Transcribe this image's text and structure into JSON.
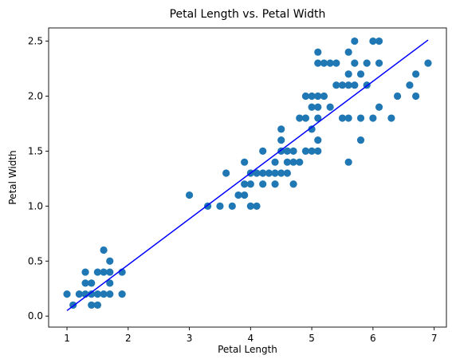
{
  "chart_data": {
    "type": "scatter",
    "title": "Petal Length vs. Petal Width",
    "xlabel": "Petal Length",
    "ylabel": "Petal Width",
    "xlim": [
      0.7,
      7.2
    ],
    "ylim": [
      -0.1,
      2.62
    ],
    "xticks": [
      1,
      2,
      3,
      4,
      5,
      6,
      7
    ],
    "yticks": [
      0.0,
      0.5,
      1.0,
      1.5,
      2.0,
      2.5
    ],
    "ytick_labels": [
      "0.0",
      "0.5",
      "1.0",
      "1.5",
      "2.0",
      "2.5"
    ],
    "grid": false,
    "legend": "none",
    "point_color": "#1f77b4",
    "line_color": "#0000ff",
    "points": [
      [
        1.0,
        0.2
      ],
      [
        1.1,
        0.1
      ],
      [
        1.2,
        0.2
      ],
      [
        1.3,
        0.2
      ],
      [
        1.3,
        0.3
      ],
      [
        1.3,
        0.4
      ],
      [
        1.4,
        0.1
      ],
      [
        1.4,
        0.2
      ],
      [
        1.4,
        0.3
      ],
      [
        1.5,
        0.1
      ],
      [
        1.5,
        0.2
      ],
      [
        1.5,
        0.4
      ],
      [
        1.6,
        0.2
      ],
      [
        1.6,
        0.4
      ],
      [
        1.6,
        0.6
      ],
      [
        1.7,
        0.2
      ],
      [
        1.7,
        0.3
      ],
      [
        1.7,
        0.4
      ],
      [
        1.7,
        0.5
      ],
      [
        1.9,
        0.2
      ],
      [
        1.9,
        0.4
      ],
      [
        3.0,
        1.1
      ],
      [
        3.3,
        1.0
      ],
      [
        3.5,
        1.0
      ],
      [
        3.6,
        1.3
      ],
      [
        3.7,
        1.0
      ],
      [
        3.8,
        1.1
      ],
      [
        3.9,
        1.1
      ],
      [
        3.9,
        1.2
      ],
      [
        3.9,
        1.4
      ],
      [
        4.0,
        1.0
      ],
      [
        4.0,
        1.2
      ],
      [
        4.0,
        1.3
      ],
      [
        4.1,
        1.0
      ],
      [
        4.1,
        1.3
      ],
      [
        4.2,
        1.2
      ],
      [
        4.2,
        1.3
      ],
      [
        4.2,
        1.5
      ],
      [
        4.3,
        1.3
      ],
      [
        4.4,
        1.2
      ],
      [
        4.4,
        1.3
      ],
      [
        4.4,
        1.4
      ],
      [
        4.5,
        1.3
      ],
      [
        4.5,
        1.5
      ],
      [
        4.5,
        1.6
      ],
      [
        4.5,
        1.7
      ],
      [
        4.6,
        1.3
      ],
      [
        4.6,
        1.4
      ],
      [
        4.6,
        1.5
      ],
      [
        4.7,
        1.2
      ],
      [
        4.7,
        1.4
      ],
      [
        4.7,
        1.5
      ],
      [
        4.8,
        1.4
      ],
      [
        4.8,
        1.8
      ],
      [
        4.9,
        1.5
      ],
      [
        4.9,
        1.8
      ],
      [
        4.9,
        2.0
      ],
      [
        5.0,
        1.5
      ],
      [
        5.0,
        1.7
      ],
      [
        5.0,
        1.9
      ],
      [
        5.0,
        2.0
      ],
      [
        5.1,
        1.5
      ],
      [
        5.1,
        1.6
      ],
      [
        5.1,
        1.8
      ],
      [
        5.1,
        1.9
      ],
      [
        5.1,
        2.0
      ],
      [
        5.1,
        2.3
      ],
      [
        5.1,
        2.4
      ],
      [
        5.2,
        2.0
      ],
      [
        5.2,
        2.3
      ],
      [
        5.3,
        1.9
      ],
      [
        5.3,
        2.3
      ],
      [
        5.4,
        2.1
      ],
      [
        5.4,
        2.3
      ],
      [
        5.5,
        1.8
      ],
      [
        5.5,
        2.1
      ],
      [
        5.6,
        1.4
      ],
      [
        5.6,
        1.8
      ],
      [
        5.6,
        2.1
      ],
      [
        5.6,
        2.2
      ],
      [
        5.6,
        2.4
      ],
      [
        5.7,
        2.1
      ],
      [
        5.7,
        2.3
      ],
      [
        5.7,
        2.5
      ],
      [
        5.8,
        1.6
      ],
      [
        5.8,
        1.8
      ],
      [
        5.8,
        2.2
      ],
      [
        5.9,
        2.1
      ],
      [
        5.9,
        2.3
      ],
      [
        6.0,
        1.8
      ],
      [
        6.0,
        2.5
      ],
      [
        6.1,
        1.9
      ],
      [
        6.1,
        2.3
      ],
      [
        6.1,
        2.5
      ],
      [
        6.3,
        1.8
      ],
      [
        6.4,
        2.0
      ],
      [
        6.6,
        2.1
      ],
      [
        6.7,
        2.0
      ],
      [
        6.7,
        2.2
      ],
      [
        6.9,
        2.3
      ]
    ],
    "fit_line": {
      "x": [
        1.0,
        6.9
      ],
      "y": [
        0.05,
        2.51
      ]
    }
  }
}
